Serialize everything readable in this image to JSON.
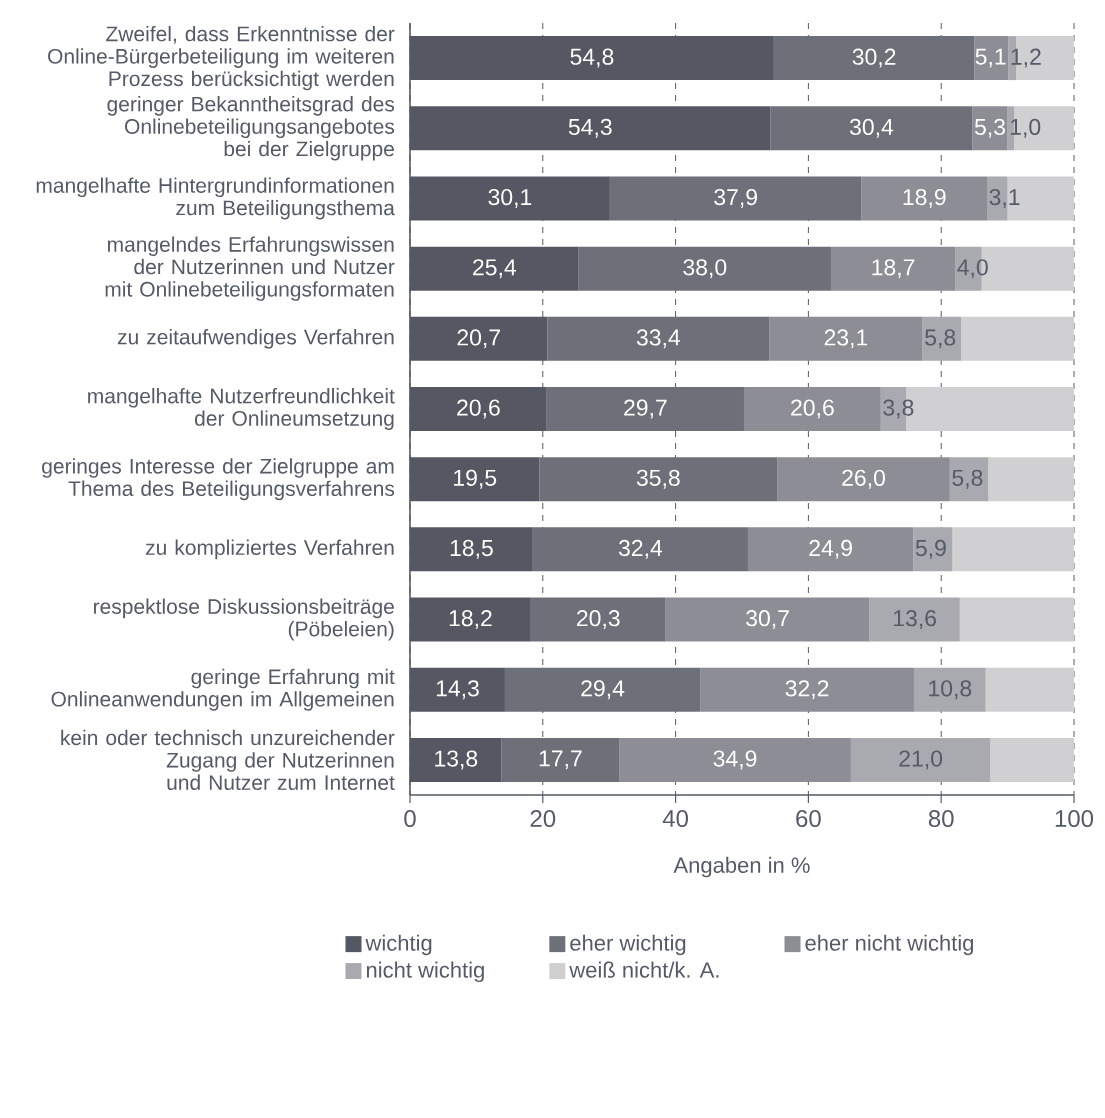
{
  "chart_data": {
    "type": "bar",
    "orientation": "horizontal",
    "stacked": true,
    "xlabel": "Angaben in %",
    "grid": "x",
    "legend": "bottom",
    "categories": [
      "Zweifel, dass Erkenntnisse der Online-Bürgerbeteiligung im weiteren Prozess berücksichtigt werden",
      "geringer Bekanntheitsgrad des Onlinebeteiligungsangebotes bei der Zielgruppe",
      "mangelhafte Hintergrundinformationen zum Beteiligungsthema",
      "mangelndes Erfahrungswissen der Nutzerinnen und Nutzer mit Onlinebeteiligungsformaten",
      "zu zeitaufwendiges Verfahren",
      "mangelhafte Nutzerfreundlichkeit der Onlineumsetzung",
      "geringes Interesse der Zielgruppe am Thema des Beteiligungsverfahrens",
      "zu kompliziertes Verfahren",
      "respektlose Diskussionsbeiträge (Pöbeleien)",
      "geringe Erfahrung mit Onlineanwendungen im Allgemeinen",
      "kein oder technisch unzureichender Zugang der Nutzerinnen und Nutzer zum Internet"
    ],
    "xlim": [
      0,
      100
    ],
    "xticks": [
      0,
      20,
      40,
      60,
      80,
      100
    ],
    "series": [
      {
        "name": "wichtig",
        "color": "#555862",
        "values": [
          54.8,
          54.3,
          30.1,
          25.4,
          20.7,
          20.6,
          19.5,
          18.5,
          18.2,
          14.3,
          13.8
        ],
        "value_labels": [
          "54,8",
          "54,3",
          "30,1",
          "25,4",
          "20,7",
          "20,6",
          "19,5",
          "18,5",
          "18,2",
          "14,3",
          "13,8"
        ]
      },
      {
        "name": "eher wichtig",
        "color": "#6e7079",
        "values": [
          30.2,
          30.4,
          37.9,
          38.0,
          33.4,
          29.7,
          35.8,
          32.4,
          20.3,
          29.4,
          17.7
        ],
        "value_labels": [
          "30,2",
          "30,4",
          "37,9",
          "38,0",
          "33,4",
          "29,7",
          "35,8",
          "32,4",
          "20,3",
          "29,4",
          "17,7"
        ]
      },
      {
        "name": "eher nicht wichtig",
        "color": "#8c8d95",
        "values": [
          5.1,
          5.3,
          18.9,
          18.7,
          23.1,
          20.6,
          26.0,
          24.9,
          30.7,
          32.2,
          34.9
        ],
        "value_labels": [
          "5,1",
          "5,3",
          "18,9",
          "18,7",
          "23,1",
          "20,6",
          "26,0",
          "24,9",
          "30,7",
          "32,2",
          "34,9"
        ]
      },
      {
        "name": "nicht wichtig",
        "color": "#a9aaaf",
        "values": [
          1.2,
          1.0,
          3.1,
          4.0,
          5.8,
          3.8,
          5.8,
          5.9,
          13.6,
          10.8,
          21.0
        ],
        "value_labels": [
          "1,2",
          "1,0",
          "3,1",
          "4,0",
          "5,8",
          "3,8",
          "5,8",
          "5,9",
          "13,6",
          "10,8",
          "21,0"
        ]
      },
      {
        "name": "weiß nicht/k. A.",
        "color": "#d0d0d2",
        "values": [
          8.7,
          9.0,
          10.0,
          13.9,
          17.0,
          25.3,
          12.9,
          18.3,
          17.2,
          13.3,
          12.6
        ]
      }
    ]
  }
}
